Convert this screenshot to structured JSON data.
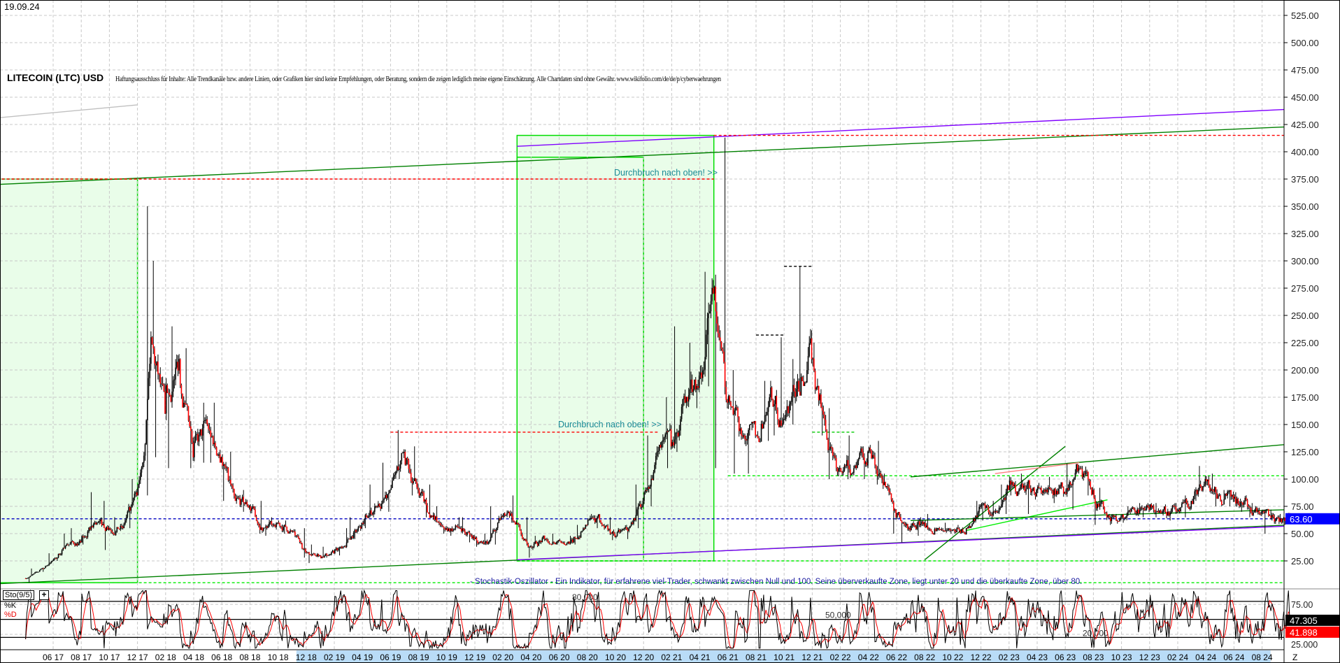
{
  "header": {
    "date": "19.09.24",
    "title": "LITECOIN (LTC) USD",
    "disclaimer": "Haftungsausschluss für Inhalte: Alle Trendkanäle bzw. andere Linien, oder Grafiken hier sind keine Empfehlungen, oder Beratung, sondern die zeigen lediglich meine eigene Einschätzung. Alle Chartdaten sind ohne Gewähr.  www.wikifolio.com/de/de/p/cyberwaehrungen"
  },
  "annotations": {
    "breakout_1": "Durchbruch nach oben! >>",
    "breakout_2": "Durchbruch nach oben! >>",
    "stochastic_note": "- Stochastik-Oszillator - Ein Indikator, für erfahrene viel-Trader, schwankt zwischen Null und 100. Seine überverkaufte Zone, liegt unter 20 und die überkaufte Zone, über 80."
  },
  "indicator": {
    "name": "Sto(9/5)",
    "plus": "+",
    "k_label": "%K",
    "d_label": "%D",
    "k_value": "47.305",
    "d_value": "41.898",
    "level_labels": [
      "80,000",
      "50,000",
      "20,000"
    ],
    "axis_labels": [
      "75.00",
      "25.000"
    ]
  },
  "chart_data": [
    {
      "type": "candlestick",
      "title": "LITECOIN (LTC) USD",
      "ylim": [
        0,
        540
      ],
      "y_ticks": [
        25,
        50,
        75,
        100,
        125,
        150,
        175,
        200,
        225,
        250,
        275,
        300,
        325,
        350,
        375,
        400,
        425,
        450,
        475,
        500,
        525
      ],
      "grid": true,
      "last_price": "63.60",
      "x_tick_labels": [
        "06 17",
        "08 17",
        "10 17",
        "12 17",
        "02 18",
        "04 18",
        "06 18",
        "08 18",
        "10 18",
        "12 18",
        "02 19",
        "04 19",
        "06 19",
        "08 19",
        "10 19",
        "12 19",
        "02 20",
        "04 20",
        "06 20",
        "08 20",
        "10 20",
        "12 20",
        "02 21",
        "04 21",
        "06 21",
        "08 21",
        "10 21",
        "12 21",
        "02 22",
        "04 22",
        "06 22",
        "08 22",
        "10 22",
        "12 22",
        "02 23",
        "04 23",
        "06 23",
        "08 23",
        "10 23",
        "12 23",
        "02 24",
        "04 24",
        "06 24",
        "08 24"
      ],
      "x_axis_end_label": "Z",
      "monthly_ohlc_columns": [
        "month",
        "high",
        "low",
        "close"
      ],
      "monthly": [
        [
          "2017-04",
          18,
          5,
          15
        ],
        [
          "2017-05",
          32,
          15,
          25
        ],
        [
          "2017-06",
          50,
          25,
          40
        ],
        [
          "2017-07",
          55,
          38,
          42
        ],
        [
          "2017-08",
          88,
          40,
          60
        ],
        [
          "2017-09",
          80,
          35,
          55
        ],
        [
          "2017-10",
          65,
          48,
          55
        ],
        [
          "2017-11",
          100,
          55,
          85
        ],
        [
          "2017-12",
          350,
          85,
          230
        ],
        [
          "2018-01",
          300,
          120,
          160
        ],
        [
          "2018-02",
          240,
          110,
          210
        ],
        [
          "2018-03",
          220,
          110,
          120
        ],
        [
          "2018-04",
          170,
          115,
          150
        ],
        [
          "2018-05",
          170,
          115,
          120
        ],
        [
          "2018-06",
          125,
          80,
          80
        ],
        [
          "2018-07",
          90,
          70,
          75
        ],
        [
          "2018-08",
          80,
          50,
          55
        ],
        [
          "2018-09",
          65,
          48,
          60
        ],
        [
          "2018-10",
          62,
          50,
          52
        ],
        [
          "2018-11",
          55,
          28,
          33
        ],
        [
          "2018-12",
          40,
          23,
          30
        ],
        [
          "2019-01",
          38,
          28,
          32
        ],
        [
          "2019-02",
          55,
          30,
          45
        ],
        [
          "2019-03",
          65,
          45,
          60
        ],
        [
          "2019-04",
          95,
          55,
          75
        ],
        [
          "2019-05",
          115,
          70,
          90
        ],
        [
          "2019-06",
          145,
          100,
          125
        ],
        [
          "2019-07",
          130,
          85,
          90
        ],
        [
          "2019-08",
          95,
          65,
          65
        ],
        [
          "2019-09",
          75,
          50,
          55
        ],
        [
          "2019-10",
          65,
          48,
          55
        ],
        [
          "2019-11",
          65,
          42,
          45
        ],
        [
          "2019-12",
          50,
          38,
          42
        ],
        [
          "2020-01",
          75,
          40,
          65
        ],
        [
          "2020-02",
          85,
          60,
          60
        ],
        [
          "2020-03",
          65,
          28,
          38
        ],
        [
          "2020-04",
          48,
          35,
          45
        ],
        [
          "2020-05",
          50,
          40,
          44
        ],
        [
          "2020-06",
          48,
          40,
          42
        ],
        [
          "2020-07",
          58,
          40,
          58
        ],
        [
          "2020-08",
          68,
          55,
          60
        ],
        [
          "2020-09",
          65,
          44,
          47
        ],
        [
          "2020-10",
          58,
          45,
          55
        ],
        [
          "2020-11",
          95,
          55,
          80
        ],
        [
          "2020-12",
          140,
          75,
          125
        ],
        [
          "2021-01",
          175,
          110,
          130
        ],
        [
          "2021-02",
          240,
          125,
          170
        ],
        [
          "2021-03",
          225,
          165,
          195
        ],
        [
          "2021-04",
          290,
          185,
          270
        ],
        [
          "2021-05",
          413,
          110,
          170
        ],
        [
          "2021-06",
          200,
          105,
          140
        ],
        [
          "2021-07",
          150,
          105,
          140
        ],
        [
          "2021-08",
          190,
          135,
          175
        ],
        [
          "2021-09",
          230,
          140,
          155
        ],
        [
          "2021-10",
          210,
          150,
          190
        ],
        [
          "2021-11",
          295,
          190,
          210
        ],
        [
          "2021-12",
          225,
          140,
          145
        ],
        [
          "2022-01",
          165,
          100,
          110
        ],
        [
          "2022-02",
          140,
          100,
          110
        ],
        [
          "2022-03",
          130,
          100,
          125
        ],
        [
          "2022-04",
          135,
          95,
          100
        ],
        [
          "2022-05",
          105,
          50,
          65
        ],
        [
          "2022-06",
          68,
          42,
          53
        ],
        [
          "2022-07",
          65,
          48,
          60
        ],
        [
          "2022-08",
          68,
          52,
          55
        ],
        [
          "2022-09",
          60,
          50,
          53
        ],
        [
          "2022-10",
          58,
          50,
          55
        ],
        [
          "2022-11",
          80,
          55,
          75
        ],
        [
          "2022-12",
          80,
          62,
          70
        ],
        [
          "2023-01",
          95,
          68,
          90
        ],
        [
          "2023-02",
          105,
          85,
          92
        ],
        [
          "2023-03",
          98,
          68,
          90
        ],
        [
          "2023-04",
          102,
          85,
          90
        ],
        [
          "2023-05",
          95,
          78,
          88
        ],
        [
          "2023-06",
          114,
          72,
          110
        ],
        [
          "2023-07",
          112,
          85,
          90
        ],
        [
          "2023-08",
          92,
          58,
          65
        ],
        [
          "2023-09",
          68,
          58,
          65
        ],
        [
          "2023-10",
          75,
          60,
          70
        ],
        [
          "2023-11",
          78,
          65,
          72
        ],
        [
          "2023-12",
          78,
          65,
          72
        ],
        [
          "2024-01",
          78,
          62,
          70
        ],
        [
          "2024-02",
          85,
          65,
          80
        ],
        [
          "2024-03",
          112,
          80,
          100
        ],
        [
          "2024-04",
          105,
          75,
          85
        ],
        [
          "2024-05",
          90,
          75,
          82
        ],
        [
          "2024-06",
          88,
          70,
          75
        ],
        [
          "2024-07",
          78,
          65,
          70
        ],
        [
          "2024-08",
          72,
          50,
          63
        ],
        [
          "2024-09",
          68,
          58,
          63.6
        ]
      ],
      "boxes": [
        {
          "from": "2017-02",
          "to": "2017-12",
          "top": 375,
          "bottom": 5
        },
        {
          "from": "2020-03",
          "to": "2021-05",
          "top": 415,
          "bottom": 25
        },
        {
          "from": "2020-03",
          "to": "2020-12",
          "top": 395,
          "bottom": 25
        }
      ],
      "lines": [
        {
          "from": [
            "2017-02",
            370
          ],
          "to": [
            "2024-10",
            423
          ],
          "color": "#008000",
          "style": "solid"
        },
        {
          "from": [
            "2020-03",
            405
          ],
          "to": [
            "2024-10",
            439
          ],
          "color": "#8000ff",
          "style": "solid"
        },
        {
          "from": [
            "2017-02",
            431
          ],
          "to": [
            "2017-12",
            443
          ],
          "color": "#c0c0c0",
          "style": "solid"
        },
        {
          "from": [
            "2017-02",
            375
          ],
          "to": [
            "2021-05",
            375
          ],
          "color": "#ff0000",
          "style": "dashed"
        },
        {
          "from": [
            "2021-05",
            415
          ],
          "to": [
            "2024-10",
            415
          ],
          "color": "#ff0000",
          "style": "dashed"
        },
        {
          "from": [
            "2019-06",
            143
          ],
          "to": [
            "2021-01",
            143
          ],
          "color": "#ff0000",
          "style": "dashed"
        },
        {
          "from": [
            "2021-10",
            295
          ],
          "to": [
            "2021-12",
            295
          ],
          "color": "#000000",
          "style": "dashed"
        },
        {
          "from": [
            "2021-08",
            232
          ],
          "to": [
            "2021-10",
            232
          ],
          "color": "#000000",
          "style": "dashed"
        },
        {
          "from": [
            "2021-12",
            143
          ],
          "to": [
            "2022-03",
            143
          ],
          "color": "#00cc00",
          "style": "dashed"
        },
        {
          "from": [
            "2021-06",
            103
          ],
          "to": [
            "2024-10",
            103
          ],
          "color": "#00ee00",
          "style": "dashed"
        },
        {
          "from": [
            "2020-03",
            25
          ],
          "to": [
            "2024-10",
            25
          ],
          "color": "#00ee00",
          "style": "dashed"
        },
        {
          "from": [
            "2017-02",
            5
          ],
          "to": [
            "2024-10",
            5
          ],
          "color": "#00ee00",
          "style": "dashed"
        },
        {
          "from": [
            "2017-02",
            63.6
          ],
          "to": [
            "2024-10",
            63.6
          ],
          "color": "#0000c0",
          "style": "dashed"
        },
        {
          "from": [
            "2017-02",
            4
          ],
          "to": [
            "2024-10",
            58
          ],
          "color": "#008000",
          "style": "solid"
        },
        {
          "from": [
            "2020-03",
            26
          ],
          "to": [
            "2024-10",
            57
          ],
          "color": "#8000ff",
          "style": "solid"
        },
        {
          "from": [
            "2022-08",
            26
          ],
          "to": [
            "2023-06",
            130
          ],
          "color": "#008000",
          "style": "solid"
        },
        {
          "from": [
            "2022-07",
            102
          ],
          "to": [
            "2024-10",
            132
          ],
          "color": "#008000",
          "style": "solid"
        },
        {
          "from": [
            "2022-11",
            53
          ],
          "to": [
            "2023-09",
            81
          ],
          "color": "#00ee00",
          "style": "solid"
        },
        {
          "from": [
            "2023-01",
            105
          ],
          "to": [
            "2023-07",
            115
          ],
          "color": "#ff8080",
          "style": "solid"
        },
        {
          "from": [
            "2022-07",
            62
          ],
          "to": [
            "2024-10",
            72
          ],
          "color": "#008000",
          "style": "solid"
        }
      ]
    },
    {
      "type": "line",
      "title": "Sto(9/5)",
      "ylim": [
        0,
        100
      ],
      "levels": [
        80,
        50,
        20
      ],
      "series": [
        {
          "name": "%K",
          "color": "#000000"
        },
        {
          "name": "%D",
          "color": "#ff0000"
        }
      ]
    }
  ],
  "colors": {
    "up": "#000000",
    "down": "#ff0000",
    "box_fill": "#e9fde9",
    "box_stroke": "#00dd00",
    "last_price_bg": "#0000ff",
    "k_bg": "#000000",
    "d_bg": "#ff0000"
  }
}
